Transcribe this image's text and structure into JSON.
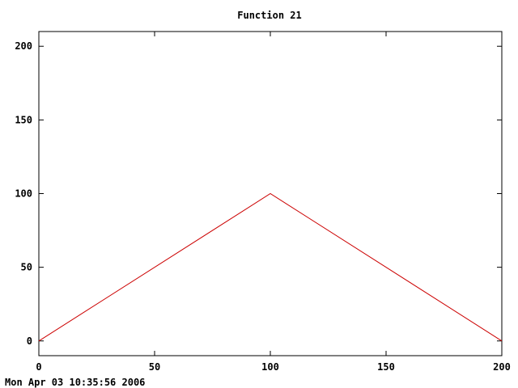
{
  "chart_data": {
    "type": "line",
    "title": "Function 21",
    "xlabel": "",
    "ylabel": "",
    "xlim": [
      0,
      200
    ],
    "ylim": [
      -10,
      210
    ],
    "x_ticks": [
      0,
      50,
      100,
      150,
      200
    ],
    "y_ticks": [
      0,
      50,
      100,
      150,
      200
    ],
    "grid": false,
    "series": [
      {
        "color": "#cc0000",
        "x": [
          0,
          100,
          200
        ],
        "y": [
          0,
          100,
          0
        ]
      }
    ]
  },
  "timestamp": "Mon Apr 03 10:35:56 2006"
}
